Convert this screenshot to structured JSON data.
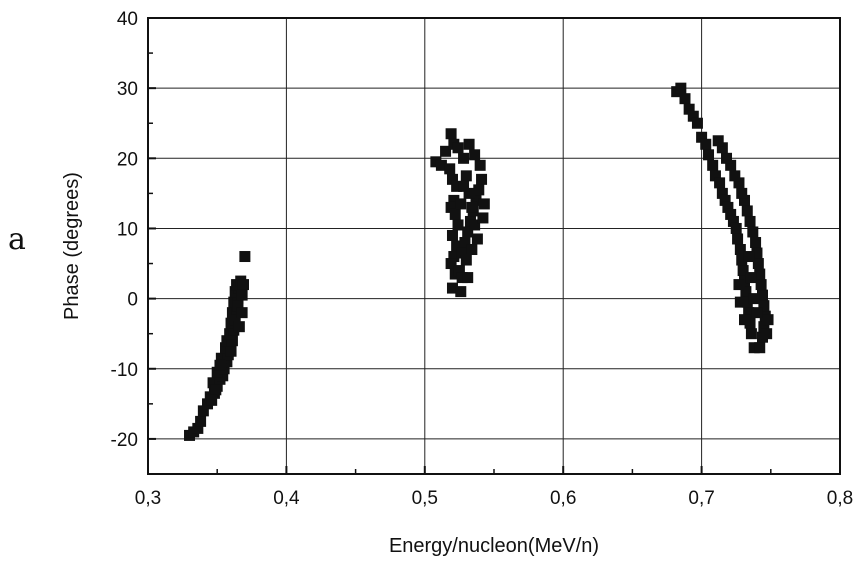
{
  "panel_label": "a",
  "chart_data": {
    "type": "scatter",
    "xlabel": "Energy/nucleon(MeV/n)",
    "ylabel": "Phase (degrees)",
    "xlim": [
      0.3,
      0.8
    ],
    "ylim": [
      -25,
      40
    ],
    "xticks": [
      {
        "value": 0.3,
        "label": "0,3"
      },
      {
        "value": 0.4,
        "label": "0,4"
      },
      {
        "value": 0.5,
        "label": "0,5"
      },
      {
        "value": 0.6,
        "label": "0,6"
      },
      {
        "value": 0.7,
        "label": "0,7"
      },
      {
        "value": 0.8,
        "label": "0,8"
      }
    ],
    "yticks": [
      {
        "value": -20,
        "label": "-20"
      },
      {
        "value": -10,
        "label": "-10"
      },
      {
        "value": 0,
        "label": "0"
      },
      {
        "value": 10,
        "label": "10"
      },
      {
        "value": 20,
        "label": "20"
      },
      {
        "value": 30,
        "label": "30"
      },
      {
        "value": 40,
        "label": "40"
      }
    ],
    "grid": true,
    "marker": "square",
    "color": "#111111",
    "points": [
      [
        0.33,
        -19.5
      ],
      [
        0.333,
        -19.0
      ],
      [
        0.336,
        -18.5
      ],
      [
        0.338,
        -17.5
      ],
      [
        0.34,
        -16.0
      ],
      [
        0.343,
        -15.0
      ],
      [
        0.345,
        -14.0
      ],
      [
        0.348,
        -13.5
      ],
      [
        0.35,
        -12.5
      ],
      [
        0.347,
        -12.0
      ],
      [
        0.352,
        -11.5
      ],
      [
        0.354,
        -11.0
      ],
      [
        0.35,
        -10.5
      ],
      [
        0.355,
        -10.0
      ],
      [
        0.357,
        -9.0
      ],
      [
        0.353,
        -8.5
      ],
      [
        0.358,
        -8.0
      ],
      [
        0.356,
        -7.0
      ],
      [
        0.36,
        -7.5
      ],
      [
        0.357,
        -6.0
      ],
      [
        0.361,
        -6.0
      ],
      [
        0.359,
        -5.0
      ],
      [
        0.362,
        -4.5
      ],
      [
        0.36,
        -3.5
      ],
      [
        0.363,
        -3.0
      ],
      [
        0.361,
        -2.0
      ],
      [
        0.364,
        -1.5
      ],
      [
        0.362,
        -0.5
      ],
      [
        0.365,
        0.0
      ],
      [
        0.363,
        1.0
      ],
      [
        0.366,
        1.5
      ],
      [
        0.364,
        2.0
      ],
      [
        0.367,
        2.5
      ],
      [
        0.369,
        2.0
      ],
      [
        0.365,
        -1.0
      ],
      [
        0.368,
        -2.0
      ],
      [
        0.366,
        -4.0
      ],
      [
        0.368,
        0.5
      ],
      [
        0.352,
        -9.5
      ],
      [
        0.349,
        -13.0
      ],
      [
        0.346,
        -14.5
      ],
      [
        0.37,
        6.0
      ],
      [
        0.508,
        19.5
      ],
      [
        0.512,
        19.0
      ],
      [
        0.515,
        21.0
      ],
      [
        0.519,
        23.5
      ],
      [
        0.521,
        22.0
      ],
      [
        0.524,
        21.5
      ],
      [
        0.518,
        18.5
      ],
      [
        0.52,
        17.0
      ],
      [
        0.523,
        16.0
      ],
      [
        0.521,
        14.0
      ],
      [
        0.519,
        13.0
      ],
      [
        0.522,
        12.0
      ],
      [
        0.524,
        10.5
      ],
      [
        0.52,
        9.0
      ],
      [
        0.523,
        7.5
      ],
      [
        0.521,
        6.0
      ],
      [
        0.519,
        5.0
      ],
      [
        0.522,
        3.5
      ],
      [
        0.52,
        1.5
      ],
      [
        0.526,
        1.0
      ],
      [
        0.525,
        4.0
      ],
      [
        0.527,
        6.5
      ],
      [
        0.529,
        8.0
      ],
      [
        0.531,
        9.5
      ],
      [
        0.533,
        11.0
      ],
      [
        0.535,
        12.5
      ],
      [
        0.537,
        14.0
      ],
      [
        0.539,
        15.5
      ],
      [
        0.541,
        17.0
      ],
      [
        0.54,
        19.0
      ],
      [
        0.536,
        20.5
      ],
      [
        0.532,
        22.0
      ],
      [
        0.528,
        20.0
      ],
      [
        0.53,
        17.5
      ],
      [
        0.532,
        15.0
      ],
      [
        0.534,
        13.0
      ],
      [
        0.536,
        10.5
      ],
      [
        0.538,
        8.5
      ],
      [
        0.534,
        7.0
      ],
      [
        0.53,
        5.5
      ],
      [
        0.527,
        3.0
      ],
      [
        0.542,
        11.5
      ],
      [
        0.543,
        13.5
      ],
      [
        0.526,
        13.5
      ],
      [
        0.528,
        16.0
      ],
      [
        0.531,
        3.0
      ],
      [
        0.682,
        29.5
      ],
      [
        0.685,
        30.0
      ],
      [
        0.688,
        28.5
      ],
      [
        0.691,
        27.0
      ],
      [
        0.694,
        26.0
      ],
      [
        0.697,
        25.0
      ],
      [
        0.7,
        23.0
      ],
      [
        0.703,
        22.0
      ],
      [
        0.705,
        20.5
      ],
      [
        0.708,
        19.0
      ],
      [
        0.71,
        17.5
      ],
      [
        0.713,
        16.5
      ],
      [
        0.715,
        15.0
      ],
      [
        0.717,
        14.0
      ],
      [
        0.719,
        13.0
      ],
      [
        0.721,
        12.0
      ],
      [
        0.723,
        11.0
      ],
      [
        0.725,
        10.0
      ],
      [
        0.726,
        8.5
      ],
      [
        0.728,
        7.0
      ],
      [
        0.729,
        5.5
      ],
      [
        0.73,
        4.0
      ],
      [
        0.731,
        2.5
      ],
      [
        0.732,
        1.0
      ],
      [
        0.733,
        -0.5
      ],
      [
        0.734,
        -2.0
      ],
      [
        0.735,
        -3.5
      ],
      [
        0.736,
        -5.0
      ],
      [
        0.738,
        -7.0
      ],
      [
        0.742,
        -7.0
      ],
      [
        0.744,
        -5.5
      ],
      [
        0.745,
        -4.0
      ],
      [
        0.746,
        -2.5
      ],
      [
        0.745,
        -1.0
      ],
      [
        0.744,
        0.5
      ],
      [
        0.743,
        2.0
      ],
      [
        0.742,
        3.5
      ],
      [
        0.741,
        5.0
      ],
      [
        0.74,
        6.5
      ],
      [
        0.739,
        8.0
      ],
      [
        0.737,
        9.5
      ],
      [
        0.735,
        11.0
      ],
      [
        0.733,
        12.5
      ],
      [
        0.731,
        14.0
      ],
      [
        0.729,
        15.0
      ],
      [
        0.727,
        16.5
      ],
      [
        0.724,
        17.5
      ],
      [
        0.721,
        19.0
      ],
      [
        0.718,
        20.0
      ],
      [
        0.715,
        21.5
      ],
      [
        0.712,
        22.5
      ],
      [
        0.727,
        2.0
      ],
      [
        0.728,
        -0.5
      ],
      [
        0.731,
        -3.0
      ],
      [
        0.736,
        3.0
      ],
      [
        0.738,
        0.0
      ],
      [
        0.74,
        -2.0
      ],
      [
        0.748,
        -3.0
      ],
      [
        0.747,
        -5.0
      ],
      [
        0.734,
        6.0
      ]
    ]
  }
}
